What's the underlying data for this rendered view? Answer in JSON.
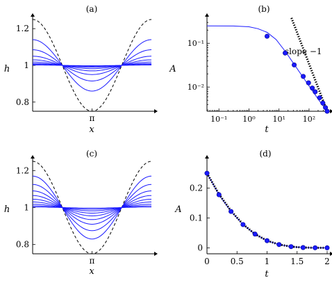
{
  "chart_data": [
    {
      "id": "a",
      "panel_label": "(a)",
      "type": "line",
      "xlabel": "x",
      "ylabel": "h",
      "xtick_labels": [
        "π"
      ],
      "xticks": [
        3.14159
      ],
      "yticks": [
        0.8,
        1,
        1.2
      ],
      "ytick_labels": [
        "0.8",
        "1",
        "1.2"
      ],
      "xlim": [
        0,
        6.28318
      ],
      "ylim": [
        0.75,
        1.25
      ],
      "colors": {
        "curves": "#1a1aff",
        "initial": "#000000"
      },
      "initial_condition": {
        "style": "dashed",
        "mean": 1,
        "amplitude": 0.25,
        "form": "1 + 0.25 cos x"
      },
      "series": [
        {
          "amplitude": 0.14
        },
        {
          "amplitude": 0.085
        },
        {
          "amplitude": 0.05
        },
        {
          "amplitude": 0.03
        },
        {
          "amplitude": 0.018
        },
        {
          "amplitude": 0.01
        },
        {
          "amplitude": 0.005
        },
        {
          "amplitude": 0.002
        }
      ]
    },
    {
      "id": "b",
      "panel_label": "(b)",
      "type": "line",
      "xlabel": "t",
      "ylabel": "A",
      "xscale": "log",
      "yscale": "log",
      "xlim": [
        0.04,
        400
      ],
      "ylim": [
        0.0028,
        0.35
      ],
      "xticks": [
        0.1,
        1,
        10,
        100
      ],
      "xtick_labels": [
        "10⁻¹",
        "10⁰",
        "10¹",
        "10²"
      ],
      "yticks": [
        0.1,
        0.01
      ],
      "ytick_labels": [
        "10⁻¹",
        "10⁻²"
      ],
      "annotation": "slope −1",
      "curve": [
        [
          0.04,
          0.25
        ],
        [
          0.3,
          0.248
        ],
        [
          1,
          0.238
        ],
        [
          2,
          0.215
        ],
        [
          4,
          0.178
        ],
        [
          8,
          0.122
        ],
        [
          16,
          0.066
        ],
        [
          32,
          0.033
        ],
        [
          64,
          0.0165
        ],
        [
          128,
          0.0083
        ],
        [
          256,
          0.0042
        ],
        [
          400,
          0.0028
        ]
      ],
      "markers": [
        [
          4,
          0.145
        ],
        [
          16,
          0.06
        ],
        [
          32,
          0.032
        ],
        [
          64,
          0.0175
        ],
        [
          96,
          0.0125
        ],
        [
          128,
          0.0095
        ],
        [
          160,
          0.0078
        ],
        [
          224,
          0.0057
        ],
        [
          288,
          0.0043
        ],
        [
          352,
          0.0034
        ],
        [
          400,
          0.0028
        ]
      ],
      "reference": [
        [
          26,
          0.38
        ],
        [
          400,
          0.0028
        ]
      ]
    },
    {
      "id": "c",
      "panel_label": "(c)",
      "type": "line",
      "xlabel": "x",
      "ylabel": "h",
      "xtick_labels": [
        "π"
      ],
      "xticks": [
        3.14159
      ],
      "yticks": [
        0.8,
        1,
        1.2
      ],
      "ytick_labels": [
        "0.8",
        "1",
        "1.2"
      ],
      "xlim": [
        0,
        6.28318
      ],
      "ylim": [
        0.75,
        1.25
      ],
      "colors": {
        "curves": "#1a1aff",
        "initial": "#000000"
      },
      "initial_condition": {
        "style": "dashed",
        "mean": 1,
        "amplitude": 0.25,
        "form": "1 + 0.25 cos x"
      },
      "series": [
        {
          "amplitude": 0.17
        },
        {
          "amplitude": 0.125
        },
        {
          "amplitude": 0.09
        },
        {
          "amplitude": 0.065
        },
        {
          "amplitude": 0.045
        },
        {
          "amplitude": 0.03
        },
        {
          "amplitude": 0.018
        },
        {
          "amplitude": 0.009
        },
        {
          "amplitude": 0.003
        }
      ]
    },
    {
      "id": "d",
      "panel_label": "(d)",
      "type": "line",
      "xlabel": "t",
      "ylabel": "A",
      "xlim": [
        0,
        2
      ],
      "ylim": [
        -0.02,
        0.29
      ],
      "xticks": [
        0,
        0.5,
        1,
        1.5,
        2
      ],
      "xtick_labels": [
        "0",
        "0.5",
        "1",
        "1.5",
        "2"
      ],
      "yticks": [
        0,
        0.1,
        0.2
      ],
      "ytick_labels": [
        "0",
        "0.1",
        "0.2"
      ],
      "curve": [
        [
          0,
          0.25
        ],
        [
          0.2,
          0.178
        ],
        [
          0.4,
          0.122
        ],
        [
          0.6,
          0.078
        ],
        [
          0.8,
          0.046
        ],
        [
          1.0,
          0.024
        ],
        [
          1.2,
          0.011
        ],
        [
          1.4,
          0.004
        ],
        [
          1.6,
          0.001
        ],
        [
          1.8,
          0.0002
        ],
        [
          2.0,
          0.0
        ]
      ],
      "markers": [
        [
          0,
          0.25
        ],
        [
          0.2,
          0.178
        ],
        [
          0.4,
          0.122
        ],
        [
          0.6,
          0.078
        ],
        [
          0.8,
          0.046
        ],
        [
          1.0,
          0.024
        ],
        [
          1.2,
          0.011
        ],
        [
          1.4,
          0.004
        ],
        [
          1.6,
          0.001
        ],
        [
          1.8,
          0.0002
        ],
        [
          2.0,
          0.0
        ]
      ],
      "reference": [
        [
          0,
          0.25
        ],
        [
          0.2,
          0.18
        ],
        [
          0.4,
          0.124
        ],
        [
          0.6,
          0.079
        ],
        [
          0.8,
          0.046
        ],
        [
          1.0,
          0.024
        ],
        [
          1.2,
          0.011
        ],
        [
          1.4,
          0.004
        ],
        [
          1.6,
          0.001
        ],
        [
          1.8,
          0.0002
        ],
        [
          2.0,
          0.0
        ]
      ]
    }
  ]
}
